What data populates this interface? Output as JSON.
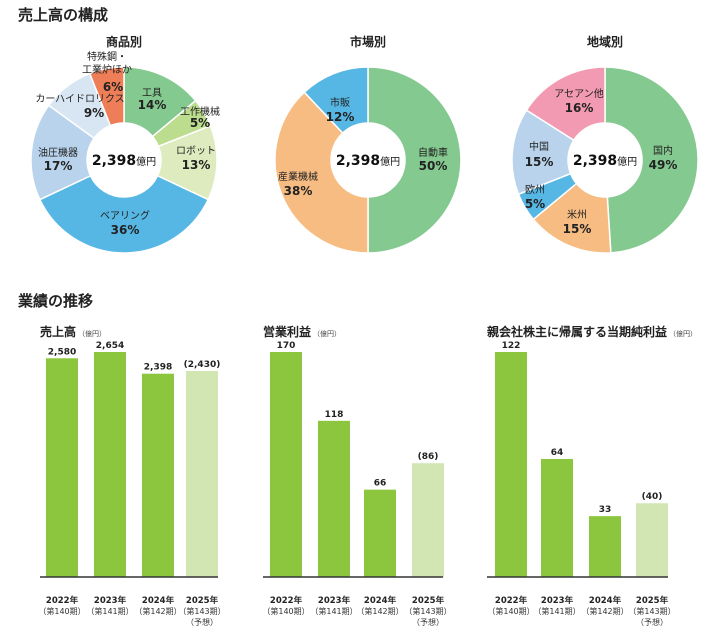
{
  "headings": {
    "composition": "売上高の構成",
    "performance": "業績の推移"
  },
  "colors": {
    "bar": "#8cc63f",
    "bar_forecast": "#d2e6b4",
    "baseline": "#333333"
  },
  "chart_data": [
    {
      "type": "pie",
      "title": "商品別",
      "center": {
        "value": "2,398",
        "unit": "億円"
      },
      "slices": [
        {
          "name": "工具",
          "pct": "14%",
          "value": 14,
          "color": "#84c98f"
        },
        {
          "name": "工作機械",
          "pct": "5%",
          "value": 5,
          "color": "#bcdc8e"
        },
        {
          "name": "ロボット",
          "pct": "13%",
          "value": 13,
          "color": "#ddebbf"
        },
        {
          "name": "ベアリング",
          "pct": "36%",
          "value": 36,
          "color": "#56b7e4"
        },
        {
          "name": "油圧機器",
          "pct": "17%",
          "value": 17,
          "color": "#b9d3ec"
        },
        {
          "name": "カーハイドロリクス",
          "pct": "9%",
          "value": 9,
          "color": "#d8e5f3"
        },
        {
          "name": "特殊鋼・工業炉ほか",
          "name_lines": [
            "特殊鋼・",
            "工業炉ほか"
          ],
          "pct": "6%",
          "value": 6,
          "color": "#ee7e57"
        }
      ]
    },
    {
      "type": "pie",
      "title": "市場別",
      "center": {
        "value": "2,398",
        "unit": "億円"
      },
      "slices": [
        {
          "name": "自動車",
          "pct": "50%",
          "value": 50,
          "color": "#84c98f"
        },
        {
          "name": "産業機械",
          "pct": "38%",
          "value": 38,
          "color": "#f7bc82"
        },
        {
          "name": "市販",
          "pct": "12%",
          "value": 12,
          "color": "#56b7e4"
        }
      ]
    },
    {
      "type": "pie",
      "title": "地域別",
      "center": {
        "value": "2,398",
        "unit": "億円"
      },
      "slices": [
        {
          "name": "国内",
          "pct": "49%",
          "value": 49,
          "color": "#84c98f"
        },
        {
          "name": "米州",
          "pct": "15%",
          "value": 15,
          "color": "#f7bc82"
        },
        {
          "name": "欧州",
          "pct": "5%",
          "value": 5,
          "color": "#56b7e4"
        },
        {
          "name": "中国",
          "pct": "15%",
          "value": 15,
          "color": "#b9d3ec"
        },
        {
          "name": "アセアン他",
          "pct": "16%",
          "value": 16,
          "color": "#f29ab2"
        }
      ]
    },
    {
      "type": "bar",
      "title": "売上高",
      "unit": "（億円）",
      "categories": [
        "2022年",
        "2023年",
        "2024年",
        "2025年"
      ],
      "sub_labels": [
        "（第140期）",
        "（第141期）",
        "（第142期）",
        "（第143期）"
      ],
      "forecast_note": "（予想）",
      "values": [
        2580,
        2654,
        2398,
        2430
      ],
      "value_labels": [
        "2,580",
        "2,654",
        "2,398",
        "(2,430)"
      ],
      "forecast": [
        false,
        false,
        false,
        true
      ],
      "ylim": [
        0,
        2654
      ]
    },
    {
      "type": "bar",
      "title": "営業利益",
      "unit": "（億円）",
      "categories": [
        "2022年",
        "2023年",
        "2024年",
        "2025年"
      ],
      "sub_labels": [
        "（第140期）",
        "（第141期）",
        "（第142期）",
        "（第143期）"
      ],
      "forecast_note": "（予想）",
      "values": [
        170,
        118,
        66,
        86
      ],
      "value_labels": [
        "170",
        "118",
        "66",
        "(86)"
      ],
      "forecast": [
        false,
        false,
        false,
        true
      ],
      "ylim": [
        0,
        170
      ]
    },
    {
      "type": "bar",
      "title": "親会社株主に帰属する当期純利益",
      "unit": "（億円）",
      "categories": [
        "2022年",
        "2023年",
        "2024年",
        "2025年"
      ],
      "sub_labels": [
        "（第140期）",
        "（第141期）",
        "（第142期）",
        "（第143期）"
      ],
      "forecast_note": "（予想）",
      "values": [
        122,
        64,
        33,
        40
      ],
      "value_labels": [
        "122",
        "64",
        "33",
        "(40)"
      ],
      "forecast": [
        false,
        false,
        false,
        true
      ],
      "ylim": [
        0,
        122
      ]
    }
  ]
}
